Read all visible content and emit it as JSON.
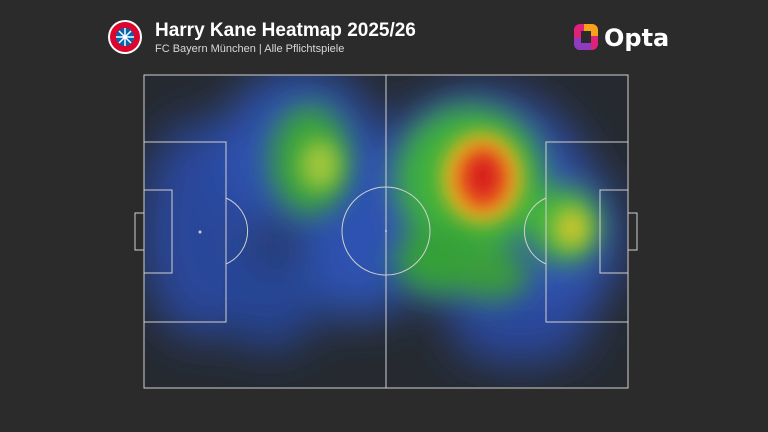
{
  "header": {
    "title": "Harry Kane Heatmap 2025/26",
    "subtitle": "FC Bayern München | Alle Pflichtspiele",
    "brand": "Opta"
  }
}
